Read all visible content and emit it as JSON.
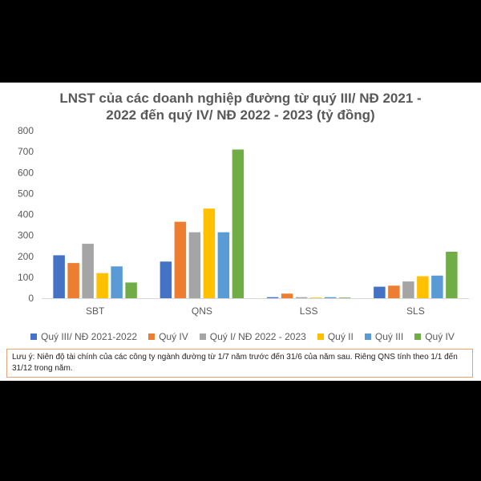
{
  "title_line1": "LNST của các doanh nghiệp đường từ quý III/ NĐ 2021 -",
  "title_line2": "2022 đến quý IV/ NĐ 2022 - 2023 (tỷ đồng)",
  "note": "Lưu ý: Niên độ tài chính của các công ty ngành đường từ 1/7 năm trước đến 31/6 của năm sau. Riêng QNS tính theo 1/1 đến 31/12 trong năm.",
  "colors": {
    "q3_2122": "#4472c4",
    "q4": "#ed7d31",
    "q1_2223": "#a5a5a5",
    "q2": "#ffc000",
    "q3": "#5b9bd5",
    "q4b": "#70ad47"
  },
  "chart_data": {
    "type": "bar",
    "title": "LNST của các doanh nghiệp đường từ quý III/ NĐ 2021 - 2022 đến quý IV/ NĐ 2022 - 2023 (tỷ đồng)",
    "categories": [
      "SBT",
      "QNS",
      "LSS",
      "SLS"
    ],
    "ylim": [
      0,
      800
    ],
    "yticks": [
      0,
      100,
      200,
      300,
      400,
      500,
      600,
      700,
      800
    ],
    "grid": false,
    "legend_position": "bottom",
    "series": [
      {
        "name": "Quý III/ NĐ 2021-2022",
        "color": "#4472c4",
        "values": [
          205,
          175,
          5,
          55
        ]
      },
      {
        "name": "Quý IV",
        "color": "#ed7d31",
        "values": [
          168,
          365,
          22,
          60
        ]
      },
      {
        "name": "Quý I/ NĐ 2022 - 2023",
        "color": "#a5a5a5",
        "values": [
          260,
          315,
          5,
          80
        ]
      },
      {
        "name": "Quý II",
        "color": "#ffc000",
        "values": [
          120,
          428,
          3,
          105
        ]
      },
      {
        "name": "Quý III",
        "color": "#5b9bd5",
        "values": [
          152,
          315,
          5,
          108
        ]
      },
      {
        "name": "Quý IV",
        "color": "#70ad47",
        "values": [
          75,
          710,
          3,
          222
        ]
      }
    ]
  }
}
